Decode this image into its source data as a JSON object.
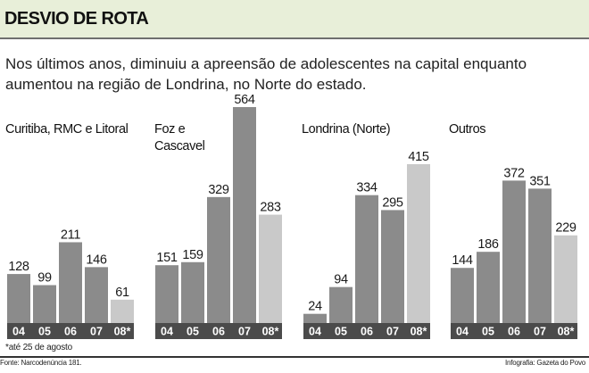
{
  "header": {
    "title": "DESVIO DE ROTA",
    "subtitle": "Nos últimos anos, diminuiu a apreensão de adolescentes na capital enquanto aumentou na região de Londrina, no Norte do estado."
  },
  "colors": {
    "header_band": "#e8efd9",
    "bar_dark": "#8b8b8b",
    "bar_light": "#c9c9c9",
    "axis_band": "#4b4b4b",
    "tick_text": "#ffffff"
  },
  "chart_data": [
    {
      "type": "bar",
      "title": "Curitiba, RMC e Litoral",
      "categories": [
        "04",
        "05",
        "06",
        "07",
        "08*"
      ],
      "values": [
        128,
        99,
        211,
        146,
        61
      ],
      "highlight": [
        false,
        false,
        false,
        false,
        true
      ],
      "ylim": [
        0,
        564
      ]
    },
    {
      "type": "bar",
      "title": "Foz e\nCascavel",
      "categories": [
        "04",
        "05",
        "06",
        "07",
        "08*"
      ],
      "values": [
        151,
        159,
        329,
        564,
        283
      ],
      "highlight": [
        false,
        false,
        false,
        false,
        true
      ],
      "ylim": [
        0,
        564
      ]
    },
    {
      "type": "bar",
      "title": "Londrina (Norte)",
      "categories": [
        "04",
        "05",
        "06",
        "07",
        "08*"
      ],
      "values": [
        24,
        94,
        334,
        295,
        415
      ],
      "highlight": [
        false,
        false,
        false,
        false,
        true
      ],
      "ylim": [
        0,
        564
      ]
    },
    {
      "type": "bar",
      "title": "Outros",
      "categories": [
        "04",
        "05",
        "06",
        "07",
        "08*"
      ],
      "values": [
        144,
        186,
        372,
        351,
        229
      ],
      "highlight": [
        false,
        false,
        false,
        false,
        true
      ],
      "ylim": [
        0,
        564
      ]
    }
  ],
  "footnote": "*até 25 de agosto",
  "source": "Fonte: Narcodenúncia 181.",
  "credit": "Infografia: Gazeta do Povo"
}
